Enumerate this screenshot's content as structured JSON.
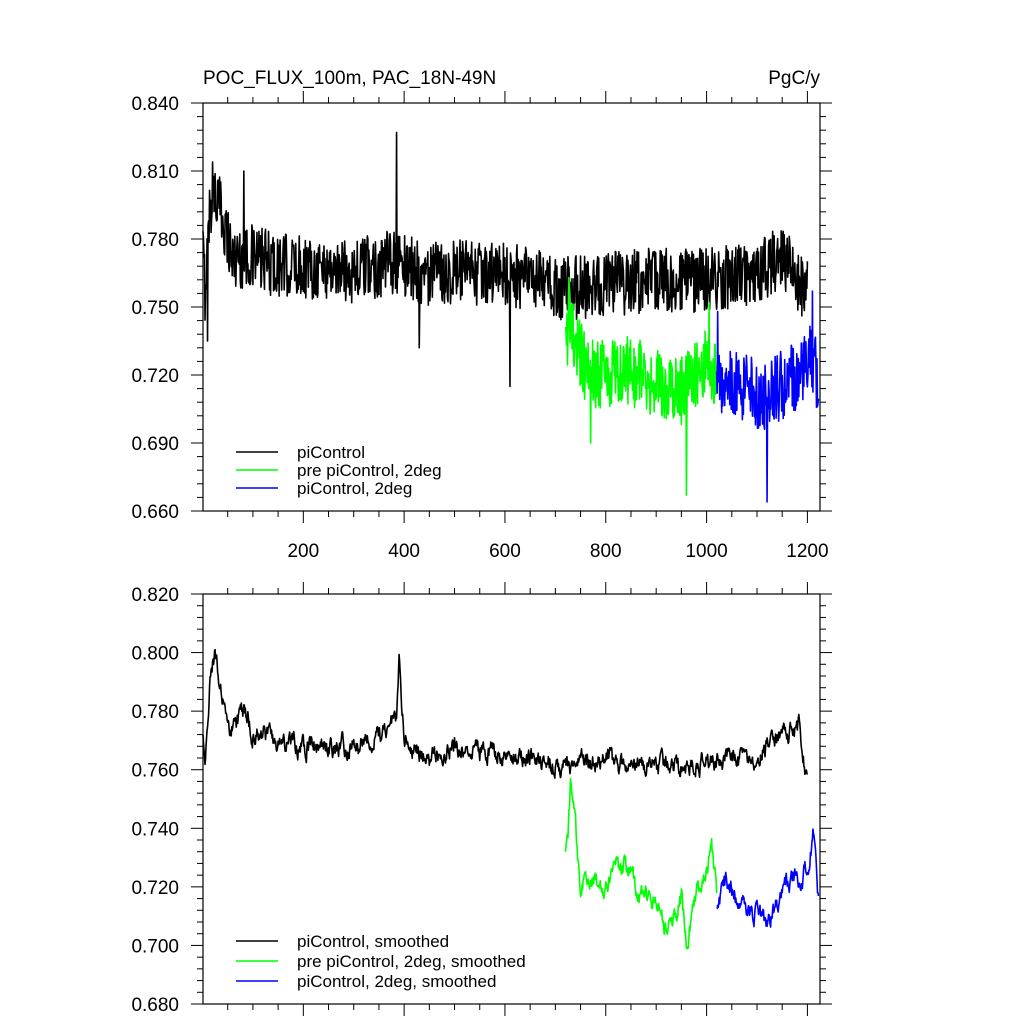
{
  "chart_data": [
    {
      "type": "line",
      "title": "POC_FLUX_100m, PAC_18N-49N",
      "units": "PgC/y",
      "xlim": [
        1,
        1225
      ],
      "ylim": [
        0.66,
        0.84
      ],
      "xticks": [
        200,
        400,
        600,
        800,
        1000,
        1200
      ],
      "xtick_labels": [
        "200",
        "400",
        "600",
        "800",
        "1000",
        "1200"
      ],
      "yticks": [
        0.66,
        0.69,
        0.72,
        0.75,
        0.78,
        0.81,
        0.84
      ],
      "ytick_labels": [
        "0.660",
        "0.690",
        "0.720",
        "0.750",
        "0.780",
        "0.810",
        "0.840"
      ],
      "legend_position": "bottom-left",
      "series": [
        {
          "name": "piControl",
          "color": "#000000",
          "x_start": 1,
          "x_end": 1200,
          "keypoints": [
            [
              1,
              0.775
            ],
            [
              5,
              0.758
            ],
            [
              15,
              0.795
            ],
            [
              25,
              0.8
            ],
            [
              40,
              0.79
            ],
            [
              60,
              0.772
            ],
            [
              100,
              0.772
            ],
            [
              150,
              0.768
            ],
            [
              200,
              0.768
            ],
            [
              300,
              0.766
            ],
            [
              385,
              0.77
            ],
            [
              450,
              0.764
            ],
            [
              500,
              0.766
            ],
            [
              550,
              0.764
            ],
            [
              600,
              0.765
            ],
            [
              650,
              0.762
            ],
            [
              700,
              0.758
            ],
            [
              750,
              0.759
            ],
            [
              800,
              0.76
            ],
            [
              900,
              0.762
            ],
            [
              1000,
              0.762
            ],
            [
              1100,
              0.765
            ],
            [
              1150,
              0.772
            ],
            [
              1200,
              0.756
            ]
          ],
          "spikes": [
            [
              10,
              0.735
            ],
            [
              20,
              0.814
            ],
            [
              82,
              0.81
            ],
            [
              385,
              0.827
            ],
            [
              430,
              0.732
            ],
            [
              610,
              0.715
            ]
          ],
          "noise": 0.011
        },
        {
          "name": "pre piControl, 2deg",
          "color": "#00ff00",
          "x_start": 720,
          "x_end": 1020,
          "keypoints": [
            [
              720,
              0.728
            ],
            [
              730,
              0.748
            ],
            [
              740,
              0.735
            ],
            [
              760,
              0.722
            ],
            [
              800,
              0.72
            ],
            [
              850,
              0.722
            ],
            [
              900,
              0.716
            ],
            [
              950,
              0.712
            ],
            [
              980,
              0.722
            ],
            [
              1000,
              0.728
            ],
            [
              1020,
              0.72
            ]
          ],
          "spikes": [
            [
              727,
              0.763
            ],
            [
              770,
              0.69
            ],
            [
              960,
              0.667
            ],
            [
              1005,
              0.752
            ]
          ],
          "noise": 0.012
        },
        {
          "name": "piControl, 2deg",
          "color": "#0000ff",
          "x_start": 1020,
          "x_end": 1222,
          "keypoints": [
            [
              1020,
              0.712
            ],
            [
              1050,
              0.718
            ],
            [
              1080,
              0.714
            ],
            [
              1100,
              0.71
            ],
            [
              1130,
              0.712
            ],
            [
              1160,
              0.718
            ],
            [
              1190,
              0.72
            ],
            [
              1210,
              0.728
            ],
            [
              1222,
              0.716
            ]
          ],
          "spikes": [
            [
              1022,
              0.748
            ],
            [
              1120,
              0.664
            ],
            [
              1210,
              0.757
            ]
          ],
          "noise": 0.012
        }
      ]
    },
    {
      "type": "line",
      "xlim": [
        1,
        1225
      ],
      "ylim": [
        0.68,
        0.82
      ],
      "xticks": [
        200,
        400,
        600,
        800,
        1000,
        1200
      ],
      "yticks": [
        0.68,
        0.7,
        0.72,
        0.74,
        0.76,
        0.78,
        0.8,
        0.82
      ],
      "ytick_labels": [
        "0.680",
        "0.700",
        "0.720",
        "0.740",
        "0.760",
        "0.780",
        "0.800",
        "0.820"
      ],
      "legend_position": "bottom-left",
      "series": [
        {
          "name": "piControl, smoothed",
          "color": "#000000",
          "x_start": 1,
          "x_end": 1200,
          "keypoints": [
            [
              1,
              0.77
            ],
            [
              5,
              0.762
            ],
            [
              15,
              0.792
            ],
            [
              25,
              0.8
            ],
            [
              35,
              0.788
            ],
            [
              50,
              0.772
            ],
            [
              80,
              0.78
            ],
            [
              100,
              0.772
            ],
            [
              150,
              0.77
            ],
            [
              200,
              0.768
            ],
            [
              300,
              0.768
            ],
            [
              385,
              0.776
            ],
            [
              390,
              0.799
            ],
            [
              400,
              0.77
            ],
            [
              450,
              0.764
            ],
            [
              500,
              0.768
            ],
            [
              550,
              0.766
            ],
            [
              600,
              0.766
            ],
            [
              650,
              0.764
            ],
            [
              700,
              0.762
            ],
            [
              750,
              0.762
            ],
            [
              800,
              0.763
            ],
            [
              900,
              0.761
            ],
            [
              1000,
              0.762
            ],
            [
              1100,
              0.764
            ],
            [
              1150,
              0.774
            ],
            [
              1185,
              0.774
            ],
            [
              1200,
              0.754
            ]
          ],
          "noise": 0.005
        },
        {
          "name": "pre piControl, 2deg, smoothed",
          "color": "#00ff00",
          "x_start": 720,
          "x_end": 1020,
          "keypoints": [
            [
              720,
              0.73
            ],
            [
              725,
              0.736
            ],
            [
              730,
              0.754
            ],
            [
              740,
              0.74
            ],
            [
              750,
              0.716
            ],
            [
              760,
              0.725
            ],
            [
              790,
              0.72
            ],
            [
              820,
              0.726
            ],
            [
              840,
              0.728
            ],
            [
              870,
              0.718
            ],
            [
              900,
              0.716
            ],
            [
              920,
              0.706
            ],
            [
              950,
              0.716
            ],
            [
              960,
              0.7
            ],
            [
              980,
              0.718
            ],
            [
              1000,
              0.726
            ],
            [
              1010,
              0.735
            ],
            [
              1020,
              0.718
            ]
          ],
          "noise": 0.005
        },
        {
          "name": "piControl, 2deg, smoothed",
          "color": "#0000ff",
          "x_start": 1020,
          "x_end": 1222,
          "keypoints": [
            [
              1020,
              0.712
            ],
            [
              1040,
              0.722
            ],
            [
              1060,
              0.716
            ],
            [
              1080,
              0.713
            ],
            [
              1100,
              0.71
            ],
            [
              1120,
              0.708
            ],
            [
              1140,
              0.714
            ],
            [
              1160,
              0.722
            ],
            [
              1180,
              0.724
            ],
            [
              1200,
              0.726
            ],
            [
              1212,
              0.738
            ],
            [
              1222,
              0.716
            ]
          ],
          "noise": 0.005
        }
      ]
    }
  ]
}
